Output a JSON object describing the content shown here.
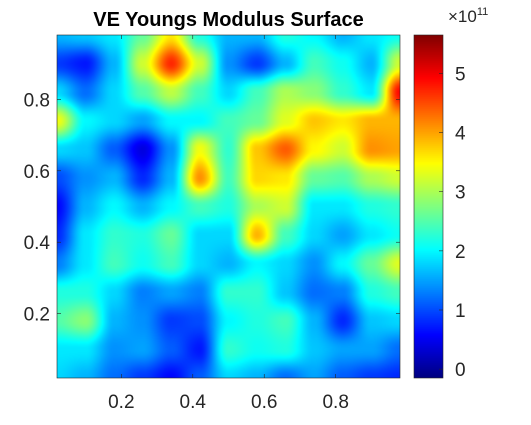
{
  "chart_data": {
    "type": "heatmap",
    "title": "VE Youngs Modulus Surface",
    "xlabel": "",
    "ylabel": "",
    "xlim": [
      0.02,
      0.98
    ],
    "ylim": [
      0.02,
      0.98
    ],
    "x_ticks": [
      "0.2",
      "0.4",
      "0.6",
      "0.8"
    ],
    "x_tick_values": [
      0.2,
      0.4,
      0.6,
      0.8
    ],
    "y_ticks": [
      "0.2",
      "0.4",
      "0.6",
      "0.8"
    ],
    "y_tick_values": [
      0.2,
      0.4,
      0.6,
      0.8
    ],
    "colormap": "jet",
    "colorbar": {
      "exponent_base": "×10",
      "exponent": "11",
      "range": [
        -0.15,
        5.65
      ],
      "ticks": [
        "0",
        "1",
        "2",
        "3",
        "4",
        "5"
      ],
      "tick_values": [
        0,
        1,
        2,
        3,
        4,
        5
      ]
    },
    "grid_x": [
      0.02,
      0.1,
      0.18,
      0.26,
      0.34,
      0.42,
      0.5,
      0.58,
      0.66,
      0.74,
      0.82,
      0.9,
      0.98
    ],
    "grid_y": [
      0.98,
      0.9,
      0.82,
      0.74,
      0.66,
      0.58,
      0.5,
      0.42,
      0.34,
      0.26,
      0.18,
      0.1,
      0.02
    ],
    "values_e11": [
      [
        1.6,
        1.7,
        1.9,
        2.6,
        3.6,
        2.2,
        1.6,
        1.6,
        2.2,
        2.0,
        1.6,
        1.9,
        2.1
      ],
      [
        0.9,
        0.7,
        1.6,
        3.2,
        4.7,
        3.2,
        1.4,
        0.9,
        1.6,
        2.4,
        2.1,
        1.6,
        3.2
      ],
      [
        1.8,
        1.2,
        1.8,
        2.5,
        3.1,
        2.4,
        1.8,
        2.4,
        3.0,
        2.8,
        2.3,
        1.9,
        4.9
      ],
      [
        3.4,
        2.0,
        1.8,
        1.5,
        2.0,
        2.0,
        2.4,
        2.6,
        3.3,
        3.8,
        3.6,
        3.9,
        3.9
      ],
      [
        1.8,
        1.7,
        1.1,
        0.4,
        1.4,
        3.4,
        2.3,
        3.8,
        4.4,
        3.5,
        3.2,
        4.1,
        4.0
      ],
      [
        1.0,
        1.4,
        1.6,
        0.8,
        1.6,
        4.1,
        2.4,
        3.7,
        3.6,
        2.6,
        2.5,
        3.0,
        3.2
      ],
      [
        0.6,
        1.6,
        2.0,
        1.6,
        2.0,
        2.4,
        2.2,
        3.0,
        3.2,
        1.9,
        1.9,
        2.2,
        2.3
      ],
      [
        0.8,
        1.9,
        2.3,
        2.2,
        2.6,
        1.8,
        1.8,
        3.9,
        2.4,
        1.8,
        1.5,
        1.9,
        2.1
      ],
      [
        1.3,
        1.9,
        2.4,
        2.1,
        2.4,
        1.8,
        1.6,
        2.0,
        1.8,
        1.4,
        2.0,
        2.6,
        3.3
      ],
      [
        2.2,
        2.2,
        1.8,
        1.3,
        1.5,
        1.3,
        2.3,
        2.3,
        1.7,
        1.2,
        1.3,
        2.2,
        2.4
      ],
      [
        2.5,
        2.8,
        1.6,
        1.4,
        0.9,
        1.0,
        2.0,
        2.2,
        2.4,
        1.6,
        0.8,
        1.7,
        1.8
      ],
      [
        1.9,
        1.9,
        1.4,
        1.5,
        1.1,
        0.7,
        2.3,
        2.1,
        2.2,
        1.7,
        1.5,
        1.5,
        1.2
      ],
      [
        1.8,
        1.6,
        1.2,
        0.9,
        0.6,
        1.1,
        1.8,
        1.6,
        1.2,
        1.5,
        1.1,
        0.9,
        0.8
      ]
    ]
  }
}
